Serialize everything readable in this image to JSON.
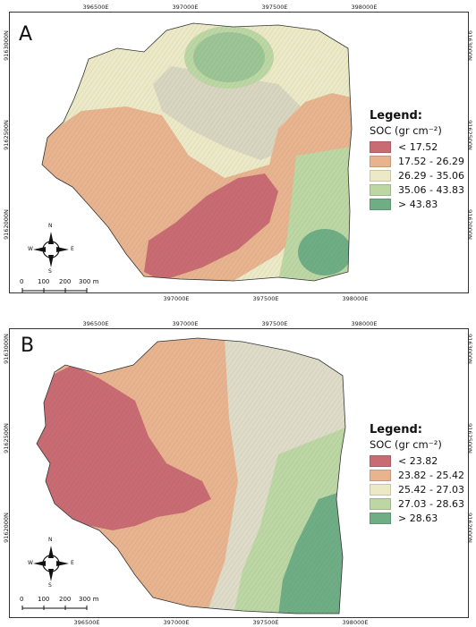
{
  "colors": {
    "class1": "#c96b73",
    "class2": "#e8b48f",
    "class3": "#ebe9c6",
    "class4": "#bcd7a4",
    "class5": "#6fae85",
    "shade": "#b5b5b0",
    "outline": "#333333"
  },
  "axes": {
    "eastings": [
      "396500E",
      "397000E",
      "397500E",
      "398000E"
    ],
    "northings_a": [
      "9163000N",
      "9162500N",
      "9162000N"
    ],
    "northings_b": [
      "9163000N",
      "9162500N",
      "9162000N"
    ]
  },
  "north_arrow": {
    "n": "N",
    "s": "S",
    "e": "E",
    "w": "W"
  },
  "scale_bar": {
    "labels": [
      "0",
      "100",
      "200",
      "300 m"
    ]
  },
  "panel_a": {
    "letter": "A",
    "legend_title": "Legend:",
    "legend_subtitle": "SOC (gr cm⁻²)",
    "classes": [
      "< 17.52",
      "17.52 - 26.29",
      "26.29 - 35.06",
      "35.06 - 43.83",
      "> 43.83"
    ]
  },
  "panel_b": {
    "letter": "B",
    "legend_title": "Legend:",
    "legend_subtitle": "SOC (gr cm⁻²)",
    "classes": [
      "< 23.82",
      "23.82 - 25.42",
      "25.42 - 27.03",
      "27.03 - 28.63",
      "> 28.63"
    ]
  }
}
